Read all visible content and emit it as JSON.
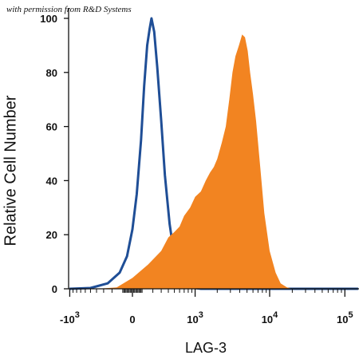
{
  "credit": "with permission from R&D Systems",
  "chart_data": {
    "type": "area",
    "xlabel": "LAG-3",
    "ylabel": "Relative Cell Number",
    "ylim": [
      0,
      100
    ],
    "y_ticks": [
      0,
      20,
      40,
      60,
      80,
      100
    ],
    "x_scale": "biexponential",
    "x_ticks": [
      {
        "base": "-10",
        "exp": "3",
        "v": -1000
      },
      {
        "base": "0",
        "exp": "",
        "v": 0
      },
      {
        "base": "10",
        "exp": "3",
        "v": 1000
      },
      {
        "base": "10",
        "exp": "4",
        "v": 10000
      },
      {
        "base": "10",
        "exp": "5",
        "v": 100000
      }
    ],
    "grid": false,
    "series": [
      {
        "kind": "outline",
        "color": "#1f4e96",
        "points": [
          [
            -1800,
            0
          ],
          [
            -1000,
            0
          ],
          [
            -500,
            0.3
          ],
          [
            -250,
            2
          ],
          [
            -120,
            6
          ],
          [
            -50,
            12
          ],
          [
            0,
            22
          ],
          [
            40,
            35
          ],
          [
            80,
            55
          ],
          [
            110,
            75
          ],
          [
            140,
            90
          ],
          [
            165,
            96
          ],
          [
            185,
            100
          ],
          [
            215,
            95
          ],
          [
            250,
            82
          ],
          [
            300,
            62
          ],
          [
            350,
            42
          ],
          [
            420,
            24
          ],
          [
            500,
            12
          ],
          [
            600,
            5
          ],
          [
            700,
            2
          ],
          [
            850,
            0.5
          ],
          [
            1200,
            0
          ],
          [
            150000,
            0
          ]
        ]
      },
      {
        "kind": "filled",
        "color": "#f28421",
        "points": [
          [
            -400,
            0
          ],
          [
            -150,
            0.5
          ],
          [
            0,
            4
          ],
          [
            150,
            9
          ],
          [
            300,
            14
          ],
          [
            400,
            19
          ],
          [
            500,
            21
          ],
          [
            600,
            23
          ],
          [
            700,
            27
          ],
          [
            850,
            30
          ],
          [
            1000,
            34
          ],
          [
            1200,
            36
          ],
          [
            1400,
            40
          ],
          [
            1600,
            43
          ],
          [
            1800,
            45
          ],
          [
            2000,
            48
          ],
          [
            2300,
            54
          ],
          [
            2600,
            60
          ],
          [
            2900,
            70
          ],
          [
            3200,
            80
          ],
          [
            3500,
            86
          ],
          [
            3900,
            90
          ],
          [
            4300,
            94
          ],
          [
            4700,
            93
          ],
          [
            5100,
            88
          ],
          [
            5500,
            80
          ],
          [
            6000,
            72
          ],
          [
            6600,
            62
          ],
          [
            7500,
            45
          ],
          [
            8500,
            28
          ],
          [
            10000,
            14
          ],
          [
            12000,
            6
          ],
          [
            14000,
            2
          ],
          [
            17000,
            0.5
          ],
          [
            20000,
            0
          ]
        ]
      }
    ]
  }
}
